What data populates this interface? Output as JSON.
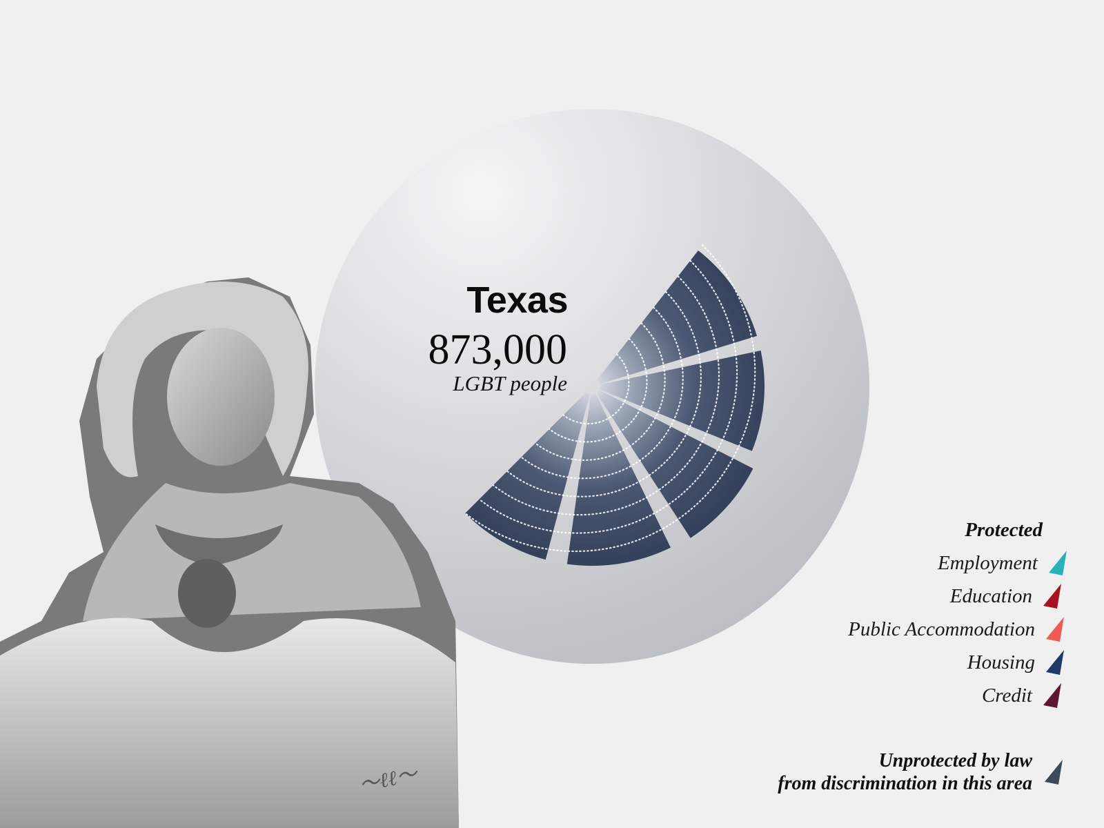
{
  "chart_data": {
    "type": "radial",
    "title": "Texas",
    "value": "873,000",
    "value_label": "LGBT people",
    "categories": [
      "Employment",
      "Education",
      "Public Accommodation",
      "Housing",
      "Credit"
    ],
    "series": [
      {
        "name": "Unprotected by law from discrimination in this area",
        "values": [
          1,
          1,
          1,
          1,
          1
        ]
      }
    ],
    "rings": 8
  },
  "legend": {
    "title": "Protected",
    "items": [
      {
        "label": "Employment",
        "color": "#27b3b8",
        "icon": "triangle-swatch-icon"
      },
      {
        "label": "Education",
        "color": "#a8121e",
        "icon": "triangle-swatch-icon"
      },
      {
        "label": "Public Accommodation",
        "color": "#f05a55",
        "icon": "triangle-swatch-icon"
      },
      {
        "label": "Housing",
        "color": "#1f3a68",
        "icon": "triangle-swatch-icon"
      },
      {
        "label": "Credit",
        "color": "#5e1630",
        "icon": "triangle-swatch-icon"
      }
    ],
    "unprotected": {
      "line1": "Unprotected by law",
      "line2": "from discrimination in this area",
      "color": "#3d4a5a",
      "icon": "triangle-swatch-icon"
    }
  },
  "photo": {
    "description_icon": "vintage-portrait-photo",
    "signature": "autograph"
  },
  "colors": {
    "background": "#f0f0f0",
    "wedge": "#2b3a55",
    "circle": "#c6c8cc"
  }
}
